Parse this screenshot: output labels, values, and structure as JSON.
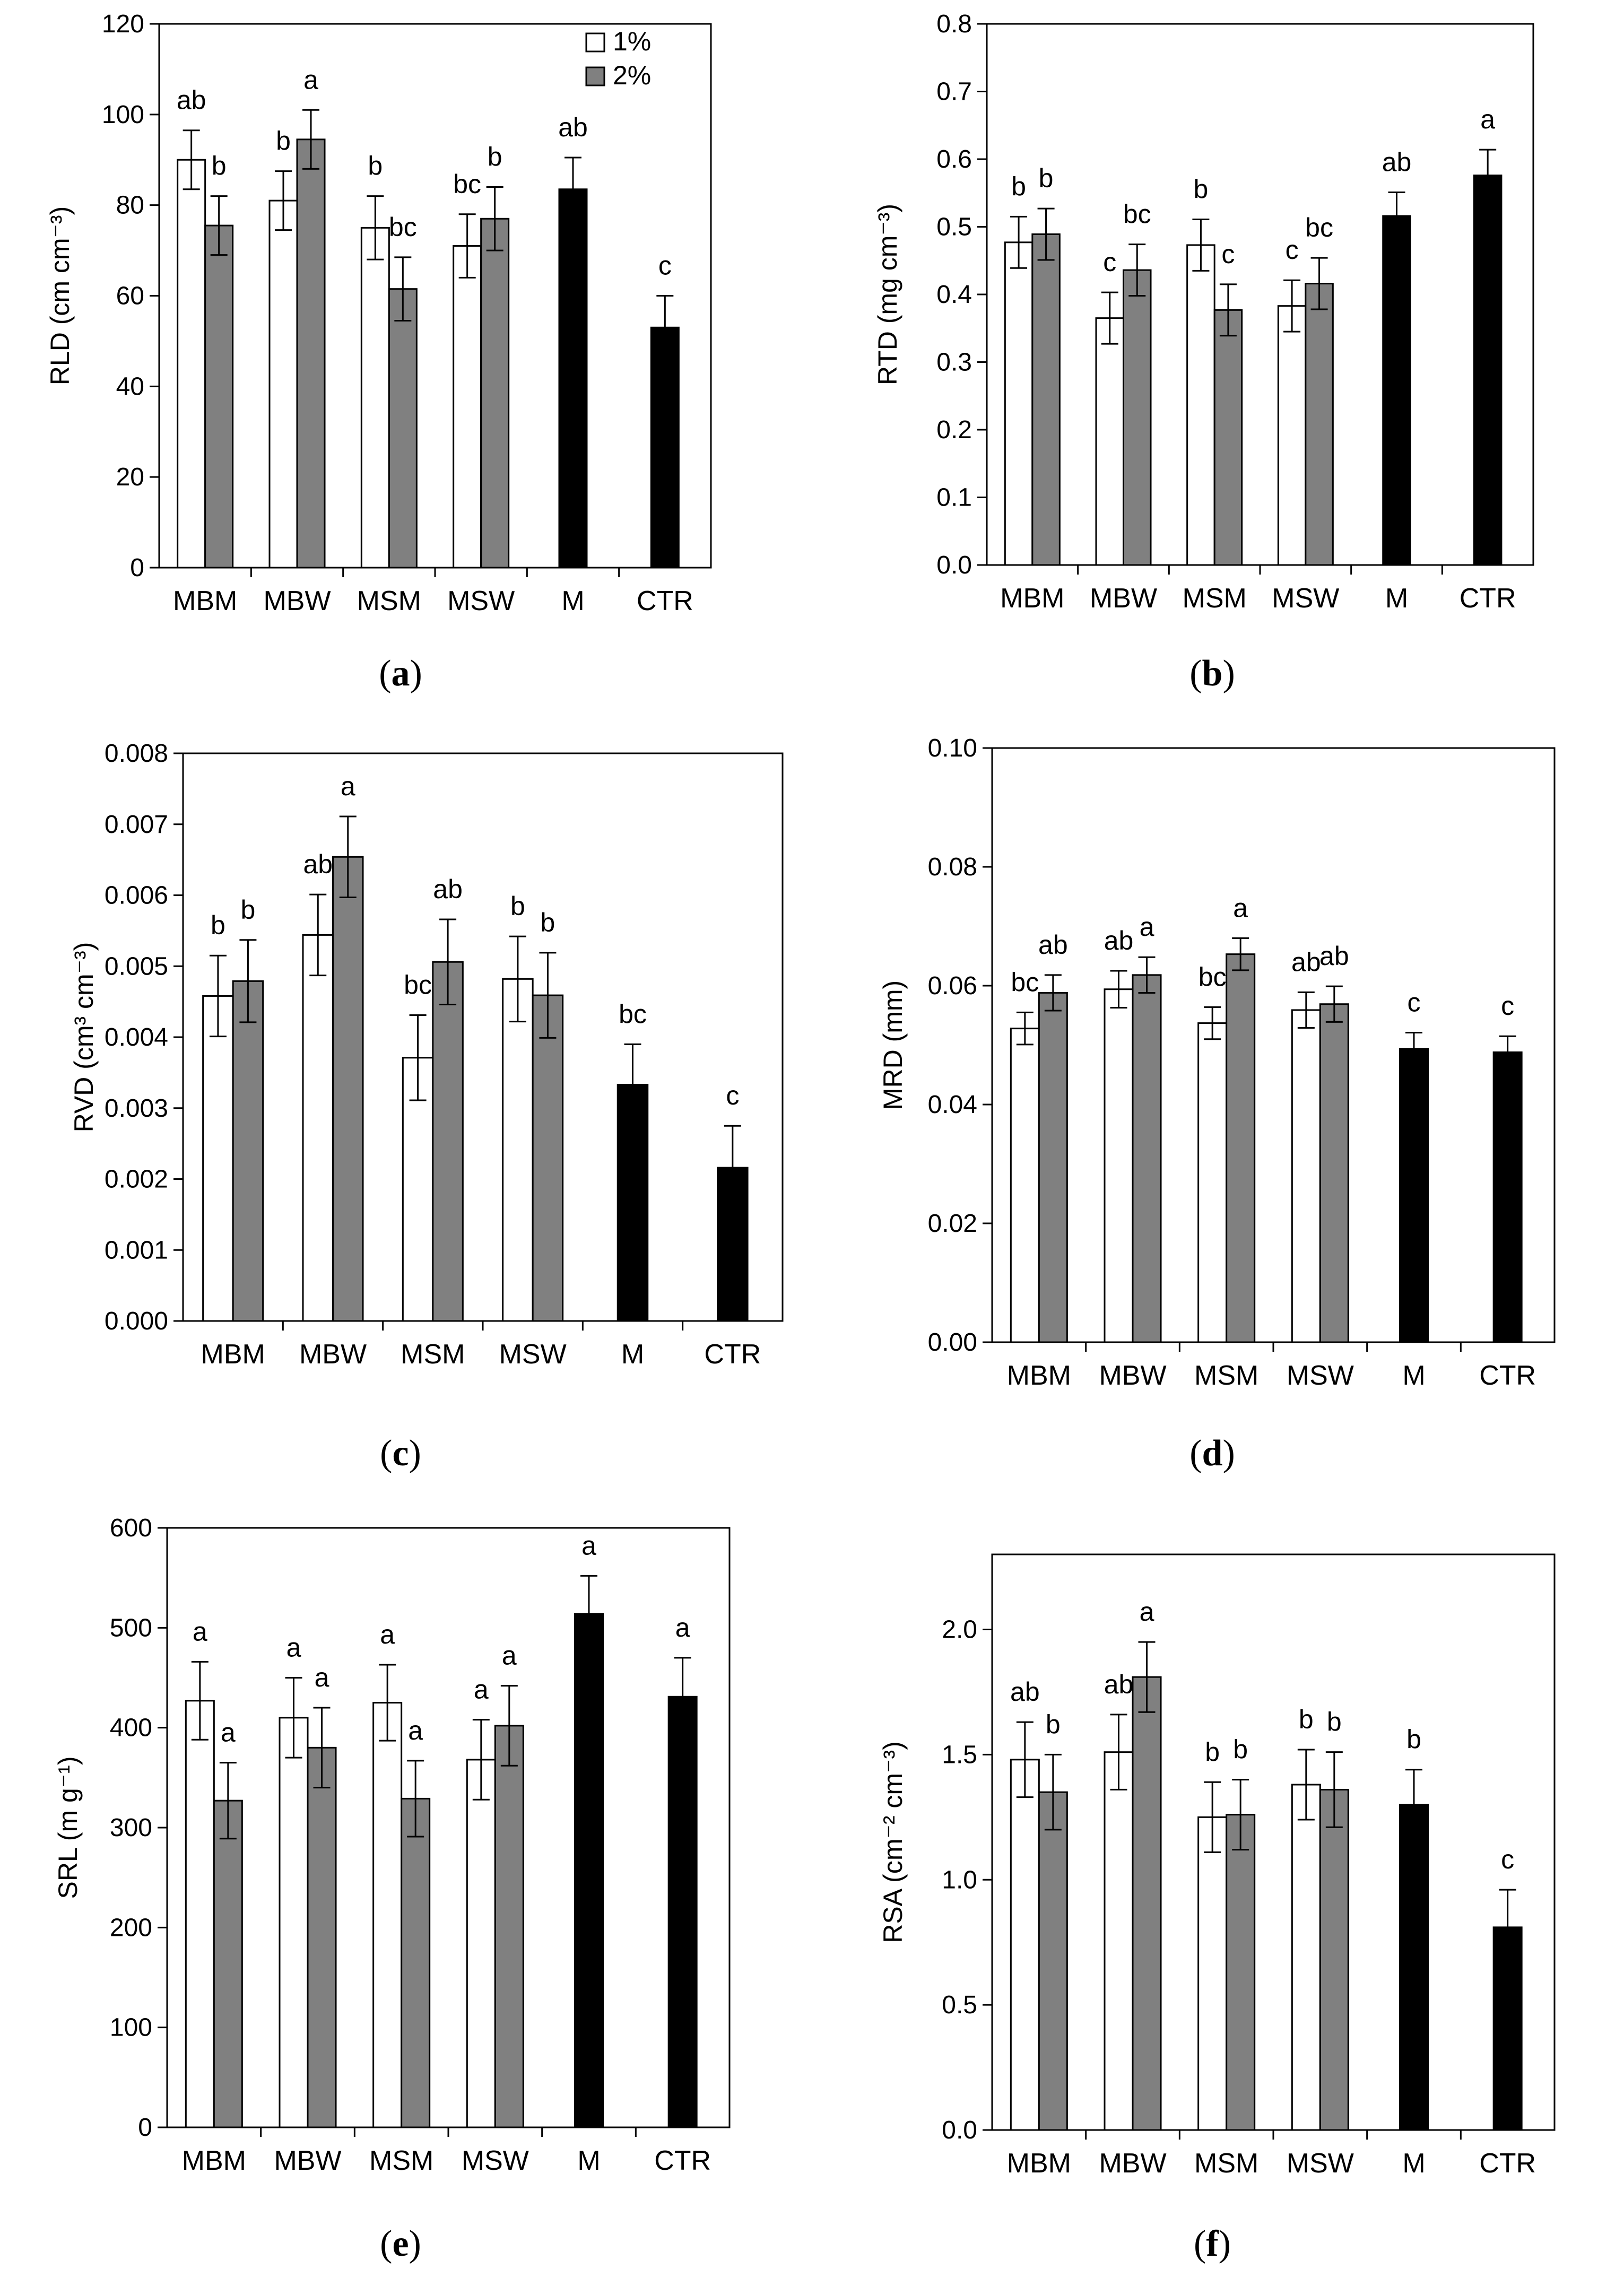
{
  "legend": {
    "labels": [
      "1%",
      "2%"
    ]
  },
  "colors": {
    "one_percent": "#ffffff",
    "two_percent": "#808080",
    "solid": "#000000"
  },
  "chart_data": [
    {
      "id": "a",
      "panel_label": "a",
      "type": "bar",
      "categories": [
        "MBM",
        "MBW",
        "MSM",
        "MSW",
        "M",
        "CTR"
      ],
      "ylabel": "RLD (cm cm⁻³)",
      "ylim": [
        0,
        120
      ],
      "yticks": [
        "0",
        "20",
        "40",
        "60",
        "80",
        "100",
        "120"
      ],
      "ytick_values": [
        0,
        20,
        40,
        60,
        80,
        100,
        120
      ],
      "legend": true,
      "series": [
        {
          "name": "1%",
          "values": [
            90,
            81,
            75,
            71,
            null,
            null
          ],
          "errors": [
            6.5,
            6.5,
            7,
            7,
            null,
            null
          ],
          "letters": [
            "ab",
            "b",
            "b",
            "bc",
            null,
            null
          ]
        },
        {
          "name": "2%",
          "values": [
            75.5,
            94.5,
            61.5,
            77,
            null,
            null
          ],
          "errors": [
            6.5,
            6.5,
            7,
            7,
            null,
            null
          ],
          "letters": [
            "b",
            "a",
            "bc",
            "b",
            null,
            null
          ]
        },
        {
          "name": "solid",
          "values": [
            null,
            null,
            null,
            null,
            83.5,
            53
          ],
          "errors": [
            null,
            null,
            null,
            null,
            7,
            7
          ],
          "letters": [
            null,
            null,
            null,
            null,
            "ab",
            "c"
          ]
        }
      ]
    },
    {
      "id": "b",
      "panel_label": "b",
      "type": "bar",
      "categories": [
        "MBM",
        "MBW",
        "MSM",
        "MSW",
        "M",
        "CTR"
      ],
      "ylabel": "RTD (mg cm⁻³)",
      "ylim": [
        0,
        0.8
      ],
      "yticks": [
        "0.0",
        "0.1",
        "0.2",
        "0.3",
        "0.4",
        "0.5",
        "0.6",
        "0.7",
        "0.8"
      ],
      "ytick_values": [
        0,
        0.1,
        0.2,
        0.3,
        0.4,
        0.5,
        0.6,
        0.7,
        0.8
      ],
      "legend": false,
      "series": [
        {
          "name": "1%",
          "values": [
            0.477,
            0.365,
            0.473,
            0.383,
            null,
            null
          ],
          "errors": [
            0.038,
            0.038,
            0.038,
            0.038,
            null,
            null
          ],
          "letters": [
            "b",
            "c",
            "b",
            "c",
            null,
            null
          ]
        },
        {
          "name": "2%",
          "values": [
            0.489,
            0.436,
            0.377,
            0.416,
            null,
            null
          ],
          "errors": [
            0.038,
            0.038,
            0.038,
            0.038,
            null,
            null
          ],
          "letters": [
            "b",
            "bc",
            "c",
            "bc",
            null,
            null
          ]
        },
        {
          "name": "solid",
          "values": [
            null,
            null,
            null,
            null,
            0.516,
            0.576
          ],
          "errors": [
            null,
            null,
            null,
            null,
            0.035,
            0.038
          ],
          "letters": [
            null,
            null,
            null,
            null,
            "ab",
            "a"
          ]
        }
      ]
    },
    {
      "id": "c",
      "panel_label": "c",
      "type": "bar",
      "categories": [
        "MBM",
        "MBW",
        "MSM",
        "MSW",
        "M",
        "CTR"
      ],
      "ylabel": "RVD (cm³ cm⁻³)",
      "ylim": [
        0,
        0.008
      ],
      "yticks": [
        "0.000",
        "0.001",
        "0.002",
        "0.003",
        "0.004",
        "0.005",
        "0.006",
        "0.007",
        "0.008"
      ],
      "ytick_values": [
        0,
        0.001,
        0.002,
        0.003,
        0.004,
        0.005,
        0.006,
        0.007,
        0.008
      ],
      "legend": false,
      "series": [
        {
          "name": "1%",
          "values": [
            0.00458,
            0.00544,
            0.00371,
            0.00482,
            null,
            null
          ],
          "errors": [
            0.00057,
            0.00057,
            0.0006,
            0.0006,
            null,
            null
          ],
          "letters": [
            "b",
            "ab",
            "bc",
            "b",
            null,
            null
          ]
        },
        {
          "name": "2%",
          "values": [
            0.00479,
            0.00654,
            0.00506,
            0.00459,
            null,
            null
          ],
          "errors": [
            0.00058,
            0.00057,
            0.0006,
            0.0006,
            null,
            null
          ],
          "letters": [
            "b",
            "a",
            "ab",
            "b",
            null,
            null
          ]
        },
        {
          "name": "solid",
          "values": [
            null,
            null,
            null,
            null,
            0.00333,
            0.00216
          ],
          "errors": [
            null,
            null,
            null,
            null,
            0.00057,
            0.00059
          ],
          "letters": [
            null,
            null,
            null,
            null,
            "bc",
            "c"
          ]
        }
      ]
    },
    {
      "id": "d",
      "panel_label": "d",
      "type": "bar",
      "categories": [
        "MBM",
        "MBW",
        "MSM",
        "MSW",
        "M",
        "CTR"
      ],
      "ylabel": "MRD (mm)",
      "ylim": [
        0,
        0.1
      ],
      "yticks": [
        "0.00",
        "0.02",
        "0.04",
        "0.06",
        "0.08",
        "0.10"
      ],
      "ytick_values": [
        0,
        0.02,
        0.04,
        0.06,
        0.08,
        0.1
      ],
      "legend": false,
      "series": [
        {
          "name": "1%",
          "values": [
            0.0528,
            0.0594,
            0.0537,
            0.0559,
            null,
            null
          ],
          "errors": [
            0.0027,
            0.0031,
            0.0027,
            0.003,
            null,
            null
          ],
          "letters": [
            "bc",
            "ab",
            "bc",
            "ab",
            null,
            null
          ]
        },
        {
          "name": "2%",
          "values": [
            0.0588,
            0.0618,
            0.0653,
            0.0569,
            null,
            null
          ],
          "errors": [
            0.003,
            0.003,
            0.0027,
            0.003,
            null,
            null
          ],
          "letters": [
            "ab",
            "a",
            "a",
            "ab",
            null,
            null
          ]
        },
        {
          "name": "solid",
          "values": [
            null,
            null,
            null,
            null,
            0.0494,
            0.0488
          ],
          "errors": [
            null,
            null,
            null,
            null,
            0.0027,
            0.0027
          ],
          "letters": [
            null,
            null,
            null,
            null,
            "c",
            "c"
          ]
        }
      ]
    },
    {
      "id": "e",
      "panel_label": "e",
      "type": "bar",
      "categories": [
        "MBM",
        "MBW",
        "MSM",
        "MSW",
        "M",
        "CTR"
      ],
      "ylabel": "SRL (m g⁻¹)",
      "ylim": [
        0,
        600
      ],
      "yticks": [
        "0",
        "100",
        "200",
        "300",
        "400",
        "500",
        "600"
      ],
      "ytick_values": [
        0,
        100,
        200,
        300,
        400,
        500,
        600
      ],
      "legend": false,
      "series": [
        {
          "name": "1%",
          "values": [
            427,
            410,
            425,
            368,
            null,
            null
          ],
          "errors": [
            39,
            40,
            38,
            40,
            null,
            null
          ],
          "letters": [
            "a",
            "a",
            "a",
            "a",
            null,
            null
          ]
        },
        {
          "name": "2%",
          "values": [
            327,
            380,
            329,
            402,
            null,
            null
          ],
          "errors": [
            38,
            40,
            38,
            40,
            null,
            null
          ],
          "letters": [
            "a",
            "a",
            "a",
            "a",
            null,
            null
          ]
        },
        {
          "name": "solid",
          "values": [
            null,
            null,
            null,
            null,
            514,
            431
          ],
          "errors": [
            null,
            null,
            null,
            null,
            38,
            39
          ],
          "letters": [
            null,
            null,
            null,
            null,
            "a",
            "a"
          ]
        }
      ]
    },
    {
      "id": "f",
      "panel_label": "f",
      "type": "bar",
      "categories": [
        "MBM",
        "MBW",
        "MSM",
        "MSW",
        "M",
        "CTR"
      ],
      "ylabel": "RSA (cm⁻² cm⁻³)",
      "ylim": [
        0,
        2.3
      ],
      "yticks": [
        "0.0",
        "0.5",
        "1.0",
        "1.5",
        "2.0"
      ],
      "ytick_values": [
        0,
        0.5,
        1.0,
        1.5,
        2.0
      ],
      "legend": false,
      "series": [
        {
          "name": "1%",
          "values": [
            1.48,
            1.51,
            1.25,
            1.38,
            null,
            null
          ],
          "errors": [
            0.15,
            0.15,
            0.14,
            0.14,
            null,
            null
          ],
          "letters": [
            "ab",
            "ab",
            "b",
            "b",
            null,
            null
          ]
        },
        {
          "name": "2%",
          "values": [
            1.35,
            1.81,
            1.26,
            1.36,
            null,
            null
          ],
          "errors": [
            0.15,
            0.14,
            0.14,
            0.15,
            null,
            null
          ],
          "letters": [
            "b",
            "a",
            "b",
            "b",
            null,
            null
          ]
        },
        {
          "name": "solid",
          "values": [
            null,
            null,
            null,
            null,
            1.3,
            0.81
          ],
          "errors": [
            null,
            null,
            null,
            null,
            0.14,
            0.15
          ],
          "letters": [
            null,
            null,
            null,
            null,
            "b",
            "c"
          ]
        }
      ]
    }
  ]
}
